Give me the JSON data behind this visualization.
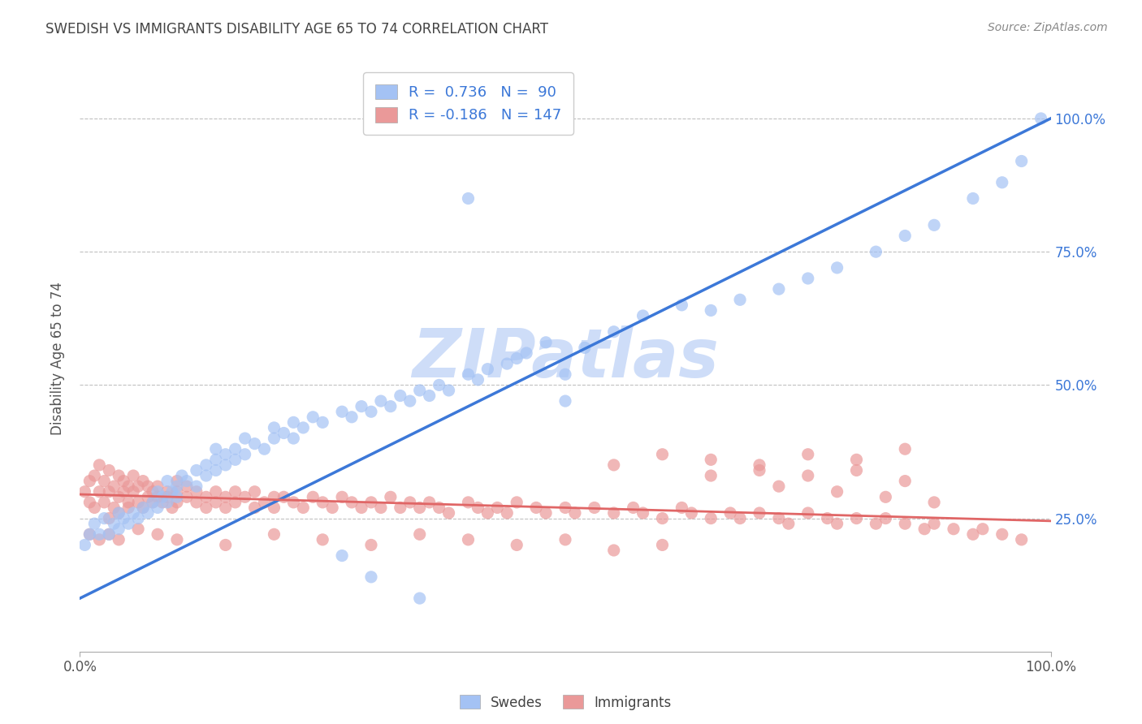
{
  "title": "SWEDISH VS IMMIGRANTS DISABILITY AGE 65 TO 74 CORRELATION CHART",
  "source": "Source: ZipAtlas.com",
  "ylabel": "Disability Age 65 to 74",
  "xlim": [
    0.0,
    1.0
  ],
  "ylim": [
    0.0,
    1.1
  ],
  "x_tick_labels": [
    "0.0%",
    "100.0%"
  ],
  "y_tick_labels": [
    "25.0%",
    "50.0%",
    "75.0%",
    "100.0%"
  ],
  "y_tick_positions": [
    0.25,
    0.5,
    0.75,
    1.0
  ],
  "swedes_R": 0.736,
  "swedes_N": 90,
  "immigrants_R": -0.186,
  "immigrants_N": 147,
  "swedes_color": "#a4c2f4",
  "immigrants_color": "#ea9999",
  "swedes_line_color": "#3c78d8",
  "immigrants_line_color": "#e06666",
  "legend_text_color": "#3c78d8",
  "background_color": "#ffffff",
  "watermark_text": "ZIPatlas",
  "watermark_color": "#c9daf8",
  "grid_color": "#c0c0c0",
  "swedes_line_start_y": 0.1,
  "swedes_line_end_y": 1.0,
  "immigrants_line_start_y": 0.295,
  "immigrants_line_end_y": 0.245,
  "swedes_x": [
    0.005,
    0.01,
    0.015,
    0.02,
    0.025,
    0.03,
    0.035,
    0.04,
    0.04,
    0.045,
    0.05,
    0.055,
    0.06,
    0.065,
    0.07,
    0.075,
    0.08,
    0.08,
    0.085,
    0.09,
    0.09,
    0.095,
    0.1,
    0.1,
    0.105,
    0.11,
    0.12,
    0.12,
    0.13,
    0.13,
    0.14,
    0.14,
    0.14,
    0.15,
    0.15,
    0.16,
    0.16,
    0.17,
    0.17,
    0.18,
    0.19,
    0.2,
    0.2,
    0.21,
    0.22,
    0.22,
    0.23,
    0.24,
    0.25,
    0.27,
    0.28,
    0.29,
    0.3,
    0.31,
    0.32,
    0.33,
    0.34,
    0.35,
    0.36,
    0.37,
    0.38,
    0.4,
    0.41,
    0.42,
    0.44,
    0.45,
    0.46,
    0.48,
    0.5,
    0.52,
    0.55,
    0.58,
    0.62,
    0.65,
    0.68,
    0.72,
    0.75,
    0.78,
    0.82,
    0.85,
    0.88,
    0.92,
    0.95,
    0.97,
    0.99,
    0.27,
    0.3,
    0.35,
    0.4,
    0.5
  ],
  "swedes_y": [
    0.2,
    0.22,
    0.24,
    0.22,
    0.25,
    0.22,
    0.24,
    0.23,
    0.26,
    0.25,
    0.24,
    0.26,
    0.25,
    0.27,
    0.26,
    0.28,
    0.27,
    0.3,
    0.29,
    0.28,
    0.32,
    0.3,
    0.29,
    0.31,
    0.33,
    0.32,
    0.34,
    0.31,
    0.35,
    0.33,
    0.36,
    0.34,
    0.38,
    0.35,
    0.37,
    0.36,
    0.38,
    0.37,
    0.4,
    0.39,
    0.38,
    0.4,
    0.42,
    0.41,
    0.4,
    0.43,
    0.42,
    0.44,
    0.43,
    0.45,
    0.44,
    0.46,
    0.45,
    0.47,
    0.46,
    0.48,
    0.47,
    0.49,
    0.48,
    0.5,
    0.49,
    0.52,
    0.51,
    0.53,
    0.54,
    0.55,
    0.56,
    0.58,
    0.52,
    0.57,
    0.6,
    0.63,
    0.65,
    0.64,
    0.66,
    0.68,
    0.7,
    0.72,
    0.75,
    0.78,
    0.8,
    0.85,
    0.88,
    0.92,
    1.0,
    0.18,
    0.14,
    0.1,
    0.85,
    0.47
  ],
  "immigrants_x": [
    0.005,
    0.01,
    0.01,
    0.015,
    0.015,
    0.02,
    0.02,
    0.025,
    0.025,
    0.03,
    0.03,
    0.03,
    0.035,
    0.035,
    0.04,
    0.04,
    0.04,
    0.045,
    0.045,
    0.05,
    0.05,
    0.05,
    0.055,
    0.055,
    0.06,
    0.06,
    0.065,
    0.065,
    0.07,
    0.07,
    0.075,
    0.075,
    0.08,
    0.08,
    0.085,
    0.09,
    0.09,
    0.095,
    0.1,
    0.1,
    0.1,
    0.11,
    0.11,
    0.12,
    0.12,
    0.13,
    0.13,
    0.14,
    0.14,
    0.15,
    0.15,
    0.16,
    0.16,
    0.17,
    0.18,
    0.18,
    0.19,
    0.2,
    0.2,
    0.21,
    0.22,
    0.23,
    0.24,
    0.25,
    0.26,
    0.27,
    0.28,
    0.29,
    0.3,
    0.31,
    0.32,
    0.33,
    0.34,
    0.35,
    0.36,
    0.37,
    0.38,
    0.4,
    0.41,
    0.42,
    0.43,
    0.44,
    0.45,
    0.47,
    0.48,
    0.5,
    0.51,
    0.53,
    0.55,
    0.57,
    0.58,
    0.6,
    0.62,
    0.63,
    0.65,
    0.67,
    0.68,
    0.7,
    0.72,
    0.73,
    0.75,
    0.77,
    0.78,
    0.8,
    0.82,
    0.83,
    0.85,
    0.87,
    0.88,
    0.9,
    0.92,
    0.93,
    0.95,
    0.97,
    0.55,
    0.6,
    0.65,
    0.7,
    0.75,
    0.8,
    0.85,
    0.65,
    0.7,
    0.75,
    0.8,
    0.85,
    0.72,
    0.78,
    0.83,
    0.88,
    0.6,
    0.55,
    0.5,
    0.45,
    0.4,
    0.35,
    0.3,
    0.25,
    0.2,
    0.15,
    0.1,
    0.08,
    0.06,
    0.04,
    0.03,
    0.02,
    0.01
  ],
  "immigrants_y": [
    0.3,
    0.32,
    0.28,
    0.33,
    0.27,
    0.3,
    0.35,
    0.28,
    0.32,
    0.25,
    0.3,
    0.34,
    0.27,
    0.31,
    0.29,
    0.33,
    0.26,
    0.3,
    0.32,
    0.28,
    0.31,
    0.27,
    0.3,
    0.33,
    0.28,
    0.31,
    0.27,
    0.32,
    0.29,
    0.31,
    0.28,
    0.3,
    0.29,
    0.31,
    0.28,
    0.3,
    0.29,
    0.27,
    0.3,
    0.28,
    0.32,
    0.29,
    0.31,
    0.28,
    0.3,
    0.29,
    0.27,
    0.3,
    0.28,
    0.29,
    0.27,
    0.3,
    0.28,
    0.29,
    0.27,
    0.3,
    0.28,
    0.29,
    0.27,
    0.29,
    0.28,
    0.27,
    0.29,
    0.28,
    0.27,
    0.29,
    0.28,
    0.27,
    0.28,
    0.27,
    0.29,
    0.27,
    0.28,
    0.27,
    0.28,
    0.27,
    0.26,
    0.28,
    0.27,
    0.26,
    0.27,
    0.26,
    0.28,
    0.27,
    0.26,
    0.27,
    0.26,
    0.27,
    0.26,
    0.27,
    0.26,
    0.25,
    0.27,
    0.26,
    0.25,
    0.26,
    0.25,
    0.26,
    0.25,
    0.24,
    0.26,
    0.25,
    0.24,
    0.25,
    0.24,
    0.25,
    0.24,
    0.23,
    0.24,
    0.23,
    0.22,
    0.23,
    0.22,
    0.21,
    0.35,
    0.37,
    0.36,
    0.35,
    0.37,
    0.36,
    0.38,
    0.33,
    0.34,
    0.33,
    0.34,
    0.32,
    0.31,
    0.3,
    0.29,
    0.28,
    0.2,
    0.19,
    0.21,
    0.2,
    0.21,
    0.22,
    0.2,
    0.21,
    0.22,
    0.2,
    0.21,
    0.22,
    0.23,
    0.21,
    0.22,
    0.21,
    0.22
  ]
}
